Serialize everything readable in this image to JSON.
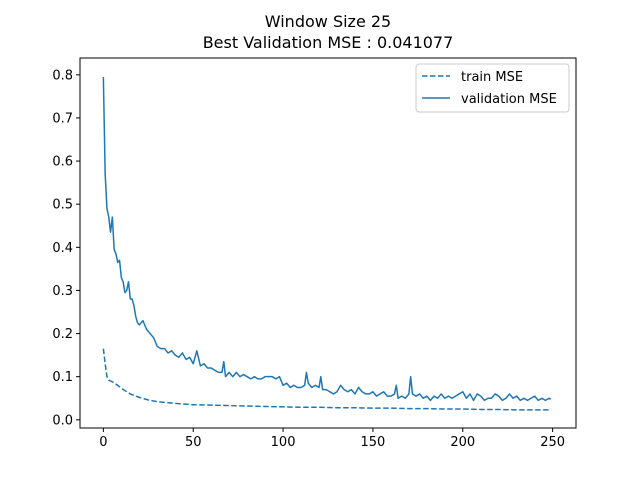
{
  "chart_data": {
    "type": "line",
    "title": "Window Size 25",
    "subtitle": "Best Validation MSE : 0.041077",
    "xlabel": "",
    "ylabel": "",
    "xlim": [
      -13,
      263
    ],
    "ylim": [
      -0.019,
      0.839
    ],
    "xticks": [
      0,
      50,
      100,
      150,
      200,
      250
    ],
    "yticks": [
      0.0,
      0.1,
      0.2,
      0.3,
      0.4,
      0.5,
      0.6,
      0.7,
      0.8
    ],
    "grid": false,
    "legend_position": "upper right",
    "line_color": "#1f77b4",
    "series": [
      {
        "name": "train MSE",
        "style": "dashed",
        "x": [
          0,
          1,
          2,
          3,
          5,
          8,
          10,
          15,
          20,
          25,
          30,
          35,
          40,
          50,
          60,
          70,
          80,
          90,
          100,
          110,
          120,
          130,
          140,
          150,
          160,
          170,
          180,
          190,
          200,
          210,
          220,
          230,
          240,
          249
        ],
        "y": [
          0.165,
          0.13,
          0.1,
          0.092,
          0.088,
          0.08,
          0.073,
          0.06,
          0.052,
          0.046,
          0.042,
          0.04,
          0.038,
          0.035,
          0.034,
          0.033,
          0.032,
          0.031,
          0.03,
          0.029,
          0.029,
          0.028,
          0.028,
          0.027,
          0.027,
          0.026,
          0.026,
          0.025,
          0.025,
          0.024,
          0.024,
          0.023,
          0.023,
          0.023
        ]
      },
      {
        "name": "validation MSE",
        "style": "solid",
        "x": [
          0,
          1,
          2,
          3,
          4,
          5,
          6,
          7,
          8,
          9,
          10,
          11,
          12,
          13,
          14,
          15,
          16,
          17,
          18,
          19,
          20,
          22,
          24,
          26,
          28,
          30,
          32,
          34,
          36,
          38,
          40,
          42,
          44,
          46,
          48,
          50,
          52,
          54,
          56,
          58,
          60,
          62,
          64,
          66,
          67,
          68,
          70,
          72,
          74,
          76,
          78,
          80,
          82,
          84,
          86,
          88,
          90,
          92,
          94,
          96,
          98,
          100,
          102,
          104,
          106,
          108,
          110,
          112,
          113,
          114,
          116,
          118,
          120,
          121,
          122,
          124,
          126,
          128,
          130,
          132,
          134,
          136,
          138,
          140,
          142,
          144,
          146,
          148,
          150,
          152,
          154,
          156,
          158,
          160,
          162,
          163,
          164,
          166,
          168,
          170,
          171,
          172,
          174,
          176,
          178,
          180,
          182,
          184,
          186,
          188,
          190,
          192,
          194,
          196,
          198,
          200,
          202,
          204,
          206,
          208,
          210,
          212,
          214,
          216,
          218,
          220,
          222,
          224,
          226,
          228,
          230,
          232,
          234,
          236,
          238,
          240,
          242,
          244,
          246,
          248,
          249
        ],
        "y": [
          0.795,
          0.57,
          0.49,
          0.47,
          0.435,
          0.47,
          0.395,
          0.385,
          0.365,
          0.37,
          0.33,
          0.32,
          0.295,
          0.3,
          0.32,
          0.28,
          0.28,
          0.265,
          0.24,
          0.225,
          0.22,
          0.23,
          0.21,
          0.2,
          0.19,
          0.17,
          0.165,
          0.165,
          0.155,
          0.16,
          0.15,
          0.145,
          0.155,
          0.14,
          0.145,
          0.13,
          0.16,
          0.125,
          0.13,
          0.12,
          0.12,
          0.115,
          0.11,
          0.11,
          0.135,
          0.1,
          0.11,
          0.1,
          0.11,
          0.1,
          0.105,
          0.1,
          0.095,
          0.1,
          0.095,
          0.095,
          0.1,
          0.1,
          0.1,
          0.095,
          0.1,
          0.08,
          0.085,
          0.075,
          0.08,
          0.075,
          0.075,
          0.08,
          0.11,
          0.085,
          0.075,
          0.08,
          0.075,
          0.1,
          0.07,
          0.07,
          0.065,
          0.06,
          0.065,
          0.08,
          0.07,
          0.065,
          0.07,
          0.06,
          0.075,
          0.065,
          0.06,
          0.06,
          0.065,
          0.055,
          0.06,
          0.065,
          0.055,
          0.055,
          0.06,
          0.08,
          0.05,
          0.055,
          0.05,
          0.06,
          0.1,
          0.06,
          0.055,
          0.06,
          0.05,
          0.055,
          0.045,
          0.055,
          0.05,
          0.06,
          0.05,
          0.055,
          0.05,
          0.055,
          0.06,
          0.065,
          0.05,
          0.06,
          0.045,
          0.06,
          0.055,
          0.045,
          0.05,
          0.05,
          0.06,
          0.055,
          0.045,
          0.05,
          0.06,
          0.05,
          0.055,
          0.045,
          0.05,
          0.045,
          0.05,
          0.055,
          0.045,
          0.05,
          0.045,
          0.05,
          0.048
        ]
      }
    ]
  }
}
